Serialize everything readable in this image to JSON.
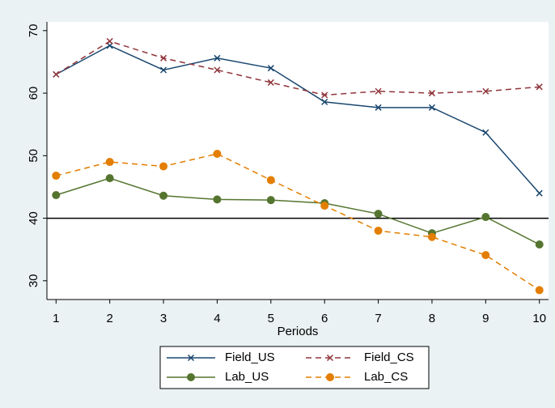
{
  "chart_data": {
    "type": "line",
    "x_label": "Periods",
    "x": [
      1,
      2,
      3,
      4,
      5,
      6,
      7,
      8,
      9,
      10
    ],
    "xlim": [
      0.83,
      10.17
    ],
    "xticks": [
      1,
      2,
      3,
      4,
      5,
      6,
      7,
      8,
      9,
      10
    ],
    "ylim": [
      27,
      71.4
    ],
    "yticks": [
      30,
      40,
      50,
      60,
      70
    ],
    "reference_line": 40,
    "series": [
      {
        "name": "Field_US",
        "color": "#1a476f",
        "dashed": false,
        "marker": "x",
        "values": [
          63,
          67.6,
          63.7,
          65.6,
          64,
          58.6,
          57.7,
          57.7,
          53.7,
          44
        ]
      },
      {
        "name": "Field_CS",
        "color": "#90353b",
        "dashed": true,
        "marker": "x",
        "values": [
          63,
          68.3,
          65.6,
          63.7,
          61.7,
          59.7,
          60.3,
          60,
          60.3,
          61
        ]
      },
      {
        "name": "Lab_US",
        "color": "#55752f",
        "dashed": false,
        "marker": "circle",
        "values": [
          43.7,
          46.4,
          43.6,
          43,
          42.9,
          42.4,
          40.7,
          37.6,
          40.2,
          35.8
        ]
      },
      {
        "name": "Lab_CS",
        "color": "#e37e00",
        "dashed": true,
        "marker": "circle",
        "values": [
          46.8,
          49,
          48.3,
          50.3,
          46.1,
          42,
          38,
          37,
          34.1,
          28.5
        ]
      }
    ]
  }
}
